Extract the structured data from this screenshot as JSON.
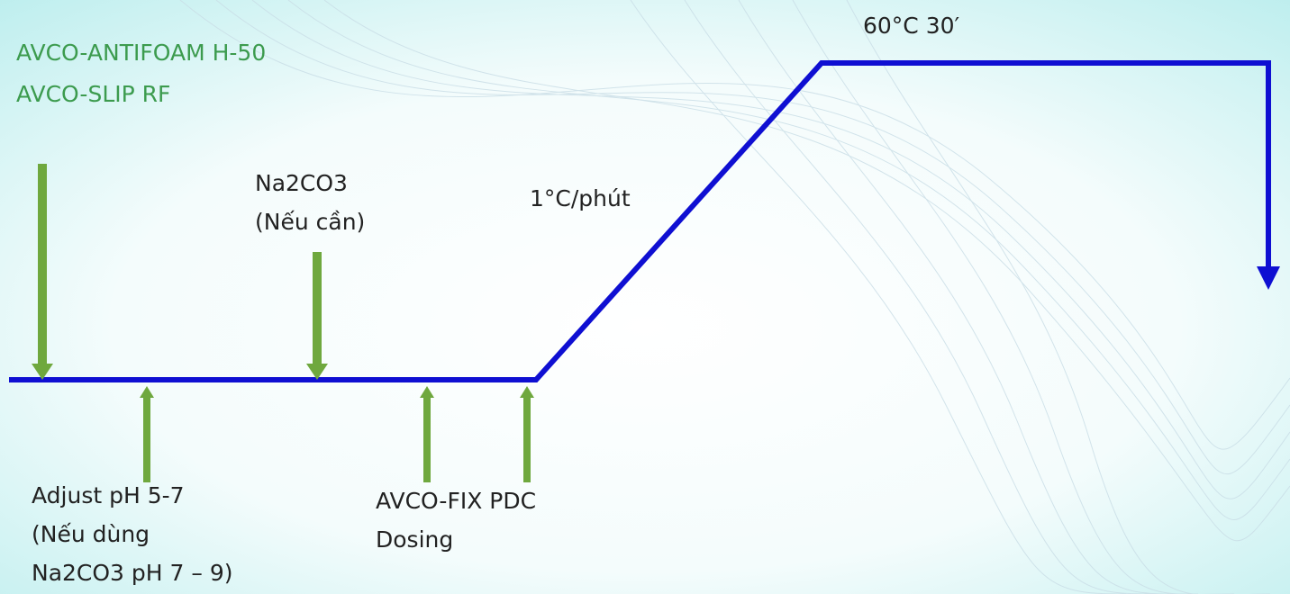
{
  "chemicals": [
    "AVCO-ANTIFOAM H-50",
    "AVCO-SLIP RF"
  ],
  "na2co3": [
    "Na2CO3",
    "(Nếu cần)"
  ],
  "rate": "1°C/phút",
  "hold": "60°C 30′",
  "adjust": [
    "Adjust pH 5-7",
    "(Nếu dùng",
    "Na2CO3 pH 7 – 9)"
  ],
  "fix": [
    "AVCO-FIX PDC",
    "Dosing"
  ]
}
